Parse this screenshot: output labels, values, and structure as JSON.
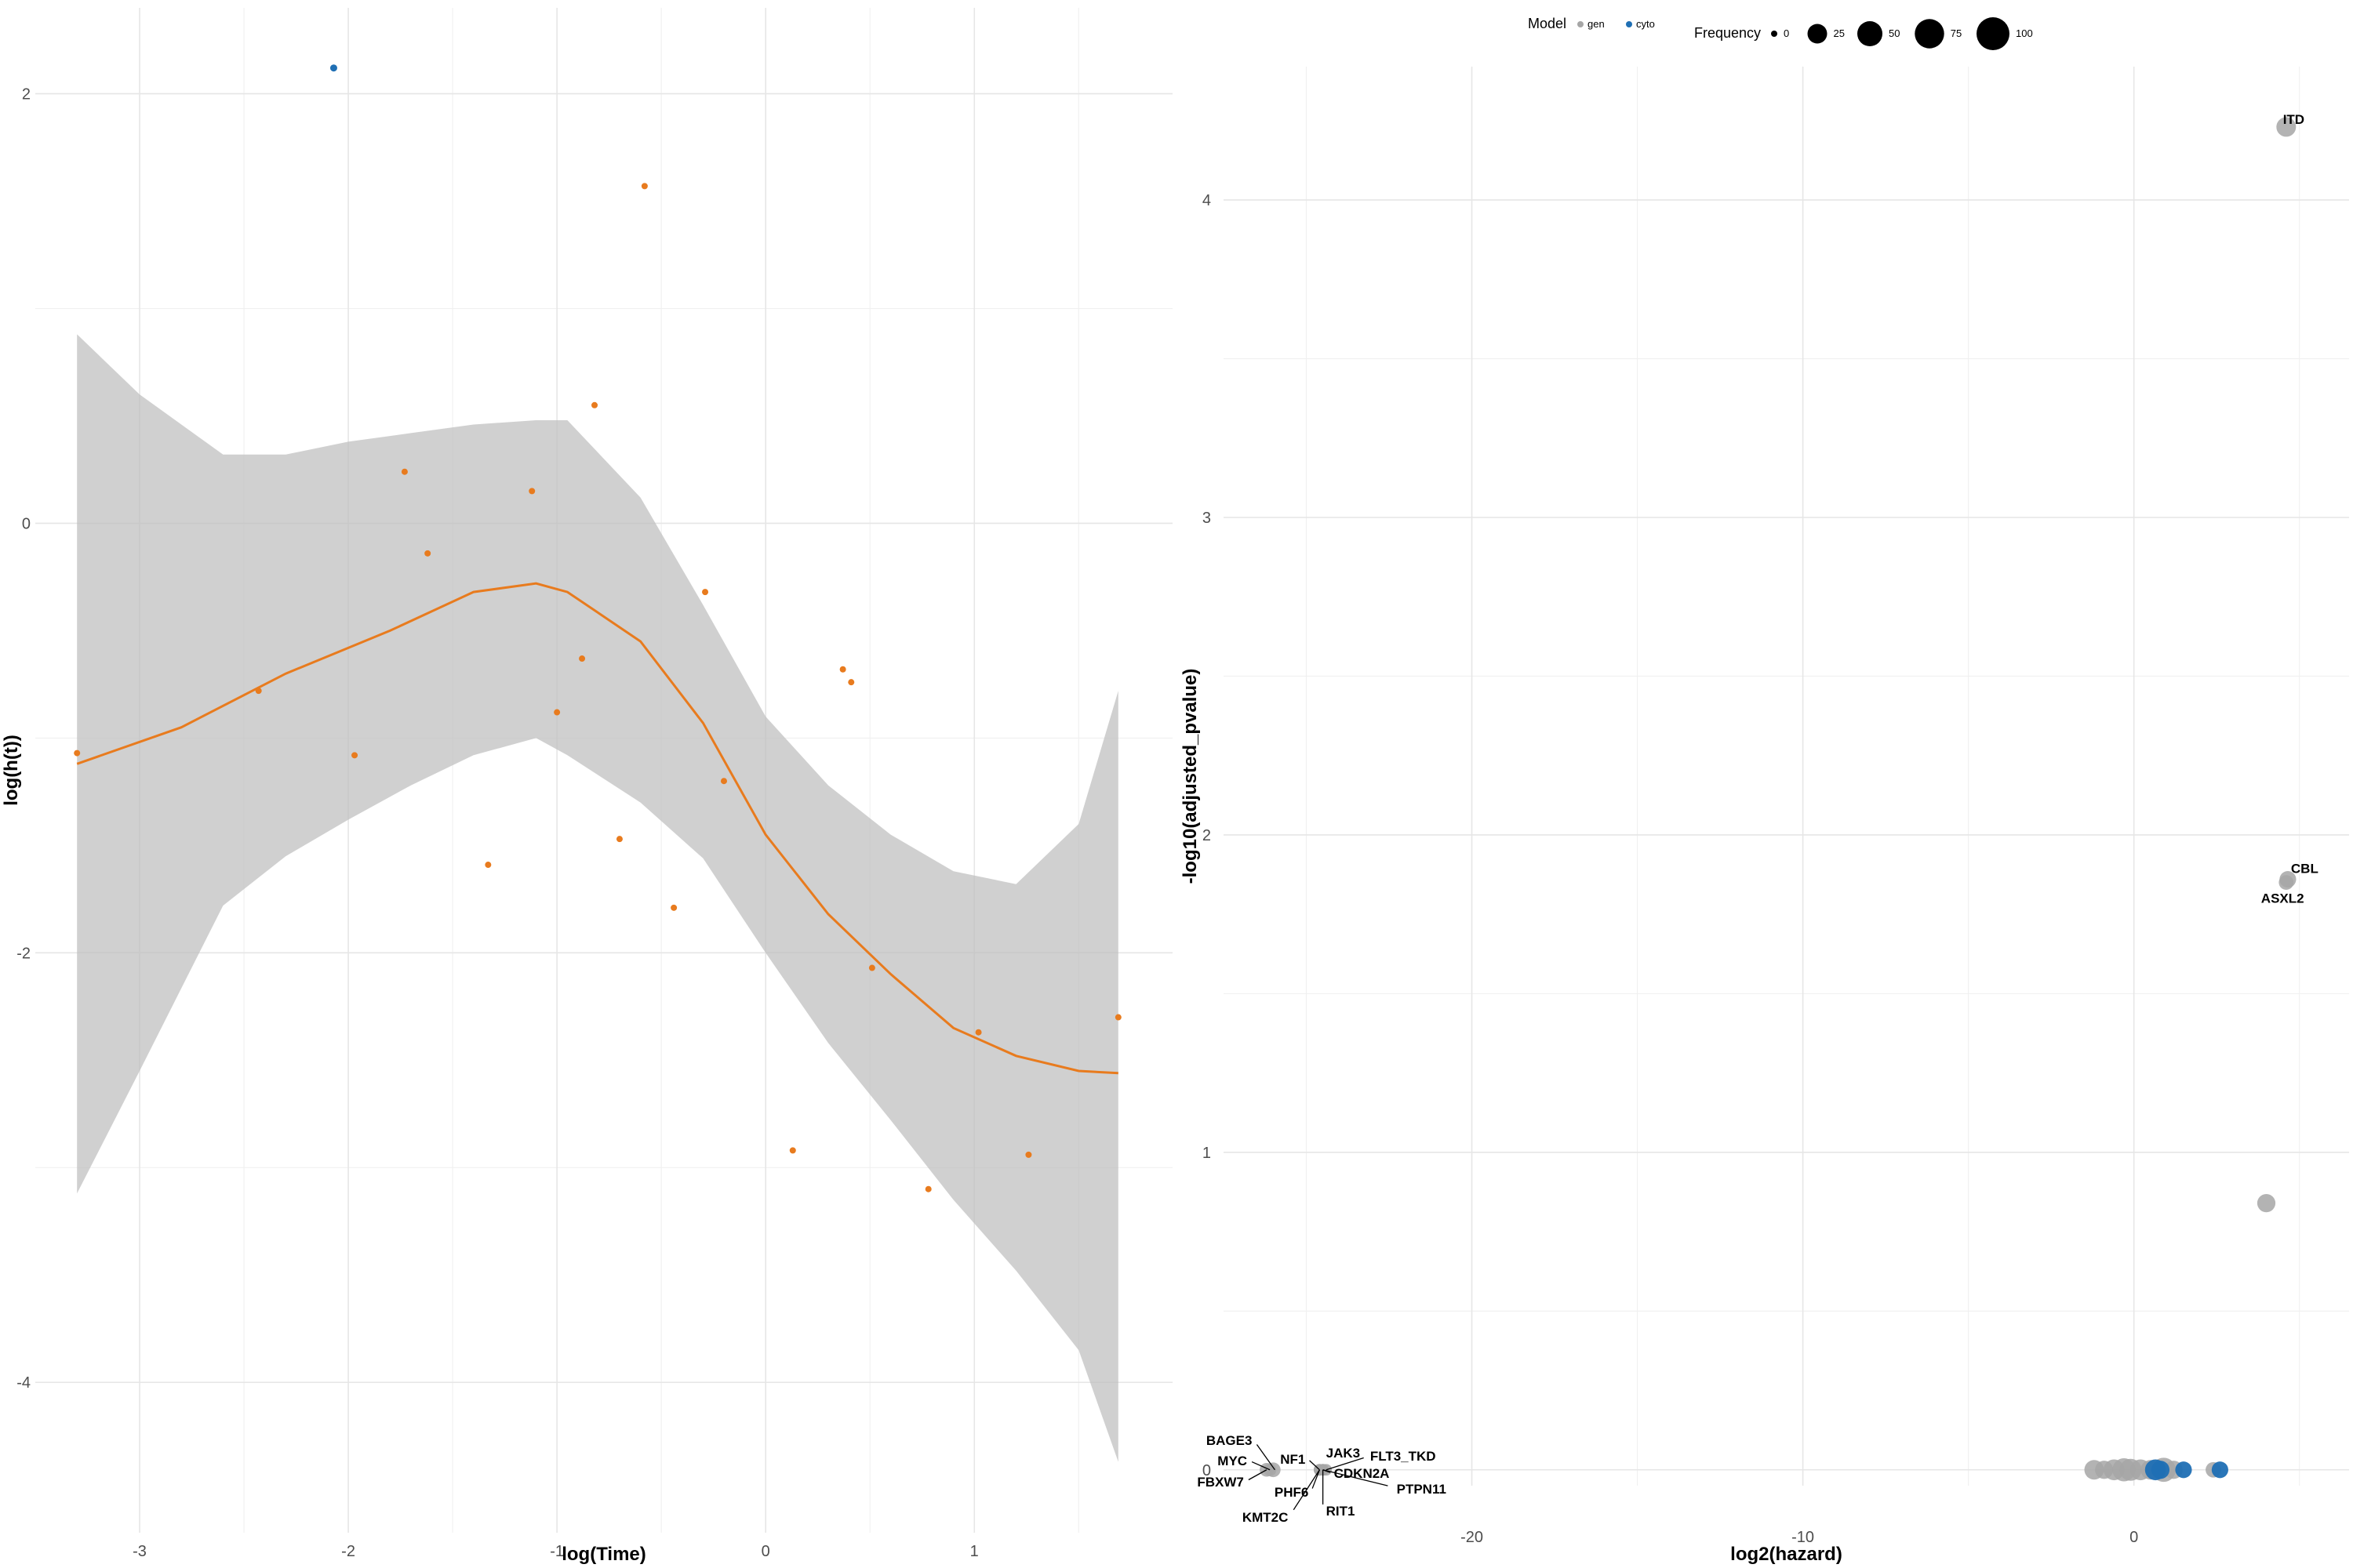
{
  "chart_data": [
    {
      "type": "scatter",
      "title": "",
      "xlabel": "log(Time)",
      "ylabel": "log(h(t))",
      "xlim": [
        -3.5,
        1.95
      ],
      "ylim": [
        -4.7,
        2.4
      ],
      "x_ticks": [
        -3,
        -2,
        -1,
        0,
        1
      ],
      "y_ticks": [
        -4,
        -2,
        0,
        2
      ],
      "x_tick_labels": [
        "-3",
        "-2",
        "-1",
        "0",
        "1"
      ],
      "y_tick_labels": [
        "-4",
        "-2",
        "0",
        "2"
      ],
      "grid": true,
      "colors": {
        "points": "#E87B1E",
        "outlier": "#1F6FB4",
        "smooth": "#E87B1E",
        "band": "#BEBEBE"
      },
      "points": [
        {
          "x": -3.3,
          "y": -1.07
        },
        {
          "x": -2.43,
          "y": -0.78
        },
        {
          "x": -1.97,
          "y": -1.08
        },
        {
          "x": -1.73,
          "y": 0.24
        },
        {
          "x": -1.62,
          "y": -0.14
        },
        {
          "x": -1.33,
          "y": -1.59
        },
        {
          "x": -1.12,
          "y": 0.15
        },
        {
          "x": -1.0,
          "y": -0.88
        },
        {
          "x": -0.88,
          "y": -0.63
        },
        {
          "x": -0.82,
          "y": 0.55
        },
        {
          "x": -0.7,
          "y": -1.47
        },
        {
          "x": -0.58,
          "y": 1.57
        },
        {
          "x": -0.44,
          "y": -1.79
        },
        {
          "x": -0.29,
          "y": -0.32
        },
        {
          "x": -0.2,
          "y": -1.2
        },
        {
          "x": 0.13,
          "y": -2.92
        },
        {
          "x": 0.37,
          "y": -0.68
        },
        {
          "x": 0.41,
          "y": -0.74
        },
        {
          "x": 0.51,
          "y": -2.07
        },
        {
          "x": 0.78,
          "y": -3.1
        },
        {
          "x": 1.02,
          "y": -2.37
        },
        {
          "x": 1.26,
          "y": -2.94
        },
        {
          "x": 1.69,
          "y": -2.3
        }
      ],
      "outlier_points": [
        {
          "x": -2.07,
          "y": 2.12
        }
      ],
      "smooth_line": {
        "x": [
          -3.3,
          -2.8,
          -2.3,
          -1.8,
          -1.4,
          -1.1,
          -0.95,
          -0.6,
          -0.3,
          0.0,
          0.3,
          0.6,
          0.9,
          1.2,
          1.5,
          1.69
        ],
        "y": [
          -1.12,
          -0.95,
          -0.7,
          -0.5,
          -0.32,
          -0.28,
          -0.32,
          -0.55,
          -0.93,
          -1.45,
          -1.82,
          -2.1,
          -2.35,
          -2.48,
          -2.55,
          -2.56
        ]
      },
      "confidence_band": {
        "x": [
          -3.3,
          -3.0,
          -2.6,
          -2.3,
          -2.0,
          -1.7,
          -1.4,
          -1.1,
          -0.95,
          -0.6,
          -0.3,
          0.0,
          0.3,
          0.6,
          0.9,
          1.2,
          1.5,
          1.69
        ],
        "upper": [
          0.88,
          0.6,
          0.32,
          0.32,
          0.38,
          0.42,
          0.46,
          0.48,
          0.48,
          0.12,
          -0.38,
          -0.9,
          -1.22,
          -1.45,
          -1.62,
          -1.68,
          -1.4,
          -0.78
        ],
        "lower": [
          -3.12,
          -2.55,
          -1.78,
          -1.55,
          -1.38,
          -1.22,
          -1.08,
          -1.0,
          -1.08,
          -1.3,
          -1.56,
          -2.0,
          -2.42,
          -2.78,
          -3.15,
          -3.48,
          -3.85,
          -4.37
        ]
      }
    },
    {
      "type": "scatter",
      "title": "",
      "xlabel": "log2(hazard)",
      "ylabel": "-log10(adjusted_pvalue)",
      "xlim": [
        -27.5,
        6.5
      ],
      "ylim": [
        -0.05,
        4.42
      ],
      "x_ticks": [
        -20,
        -10,
        0
      ],
      "y_ticks": [
        0,
        1,
        2,
        3,
        4
      ],
      "x_tick_labels": [
        "-20",
        "-10",
        "0"
      ],
      "y_tick_labels": [
        "0",
        "1",
        "2",
        "3",
        "4"
      ],
      "grid": true,
      "legend": {
        "position": "top",
        "model_title": "Model",
        "model_entries": [
          {
            "label": "gen",
            "color": "#A6A6A6"
          },
          {
            "label": "cyto",
            "color": "#1F6FB4"
          }
        ],
        "frequency_title": "Frequency",
        "frequency_entries": [
          {
            "label": "0",
            "value": 0
          },
          {
            "label": "25",
            "value": 25
          },
          {
            "label": "50",
            "value": 50
          },
          {
            "label": "75",
            "value": 75
          },
          {
            "label": "100",
            "value": 100
          }
        ]
      },
      "series": [
        {
          "model": "gen",
          "points": [
            {
              "x": 4.6,
              "y": 4.23,
              "frequency": 25,
              "label": "ITD"
            },
            {
              "x": 4.65,
              "y": 1.86,
              "frequency": 15,
              "label": "CBL"
            },
            {
              "x": 4.6,
              "y": 1.85,
              "frequency": 10,
              "label": "ASXL2"
            },
            {
              "x": 4.0,
              "y": 0.84,
              "frequency": 20
            },
            {
              "x": -26.0,
              "y": 0.0,
              "frequency": 10,
              "label": "MYC"
            },
            {
              "x": -26.2,
              "y": 0.0,
              "frequency": 8,
              "label": "FBXW7"
            },
            {
              "x": -26.1,
              "y": 0.0,
              "frequency": 6,
              "label": "BAGE3"
            },
            {
              "x": -24.6,
              "y": 0.0,
              "frequency": 4,
              "label": "NF1"
            },
            {
              "x": -24.5,
              "y": 0.0,
              "frequency": 4,
              "label": "JAK3"
            },
            {
              "x": -24.4,
              "y": 0.0,
              "frequency": 4,
              "label": "FLT3_TKD"
            },
            {
              "x": -24.5,
              "y": 0.0,
              "frequency": 4,
              "label": "CDKN2A"
            },
            {
              "x": -24.6,
              "y": 0.0,
              "frequency": 4,
              "label": "PHF6"
            },
            {
              "x": -24.5,
              "y": 0.0,
              "frequency": 4,
              "label": "PTPN11"
            },
            {
              "x": -24.5,
              "y": 0.0,
              "frequency": 4,
              "label": "RIT1"
            },
            {
              "x": -24.6,
              "y": 0.0,
              "frequency": 4,
              "label": "KMT2C"
            },
            {
              "x": -1.2,
              "y": 0.0,
              "frequency": 25
            },
            {
              "x": -0.9,
              "y": 0.0,
              "frequency": 20
            },
            {
              "x": -0.6,
              "y": 0.0,
              "frequency": 30
            },
            {
              "x": -0.3,
              "y": 0.0,
              "frequency": 40
            },
            {
              "x": -0.1,
              "y": 0.0,
              "frequency": 35
            },
            {
              "x": 0.2,
              "y": 0.0,
              "frequency": 30
            },
            {
              "x": 0.5,
              "y": 0.0,
              "frequency": 25
            },
            {
              "x": 0.9,
              "y": 0.0,
              "frequency": 45
            },
            {
              "x": 1.2,
              "y": 0.0,
              "frequency": 20
            },
            {
              "x": 2.4,
              "y": 0.0,
              "frequency": 12
            }
          ]
        },
        {
          "model": "cyto",
          "points": [
            {
              "x": 0.65,
              "y": 0.0,
              "frequency": 30
            },
            {
              "x": 0.8,
              "y": 0.0,
              "frequency": 20
            },
            {
              "x": 1.5,
              "y": 0.0,
              "frequency": 15
            },
            {
              "x": 2.6,
              "y": 0.0,
              "frequency": 15
            }
          ]
        }
      ],
      "labels": [
        {
          "text": "ITD",
          "x": 4.55,
          "y": 4.23
        },
        {
          "text": "CBL",
          "x": 4.65,
          "y": 1.86
        },
        {
          "text": "ASXL2",
          "x": 4.6,
          "y": 1.85
        },
        {
          "text": "BAGE3",
          "x": -25.95,
          "y": 0.0
        },
        {
          "text": "MYC",
          "x": -26.1,
          "y": 0.0
        },
        {
          "text": "FBXW7",
          "x": -26.2,
          "y": 0.0
        },
        {
          "text": "NF1",
          "x": -24.6,
          "y": 0.0
        },
        {
          "text": "JAK3",
          "x": -24.5,
          "y": 0.0
        },
        {
          "text": "FLT3_TKD",
          "x": -24.4,
          "y": 0.0
        },
        {
          "text": "CDKN2A",
          "x": -24.5,
          "y": 0.0
        },
        {
          "text": "PHF6",
          "x": -24.6,
          "y": 0.0
        },
        {
          "text": "PTPN11",
          "x": -24.5,
          "y": 0.0
        },
        {
          "text": "RIT1",
          "x": -24.5,
          "y": 0.0
        },
        {
          "text": "KMT2C",
          "x": -24.6,
          "y": 0.0
        }
      ]
    }
  ]
}
